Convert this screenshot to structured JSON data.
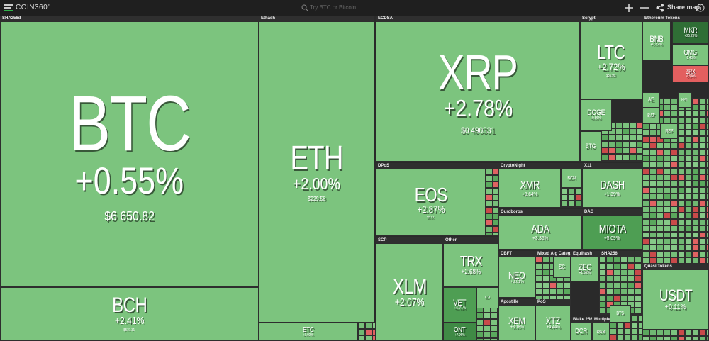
{
  "header": {
    "logo": "COIN360°",
    "search": "Try BTC or Bitcoin",
    "share": "Share map"
  },
  "groups": [
    "SHA256d",
    "Ethash",
    "ECDSA",
    "Scrypt",
    "Ethereum Tokens",
    "DPoS",
    "CryptoNight",
    "X11",
    "Ouroboros",
    "DAG",
    "SCP",
    "Other",
    "DBFT",
    "Mixed Alg Categ...",
    "Equihash",
    "SHA256",
    "Quasi Tokens",
    "Apostille",
    "PoS",
    "Blake 256",
    "Multiple"
  ],
  "tiles": [
    {
      "name": "BTC",
      "change": "+0.55%",
      "price": "$6 650.82"
    },
    {
      "name": "BCH",
      "change": "+2.41%",
      "price": "$527.31"
    },
    {
      "name": "ETH",
      "change": "+2.00%",
      "price": "$229.58"
    },
    {
      "name": "ETC",
      "change": "+0.92%"
    },
    {
      "name": "XRP",
      "change": "+2.78%",
      "price": "$0.490331"
    },
    {
      "name": "LTC",
      "change": "+2.72%",
      "price": "$56.90"
    },
    {
      "name": "DOGE",
      "change": "+0.56%"
    },
    {
      "name": "BTG"
    },
    {
      "name": "EOS",
      "change": "+2.87%",
      "price": "$5.91"
    },
    {
      "name": "XMR",
      "change": "+0.64%"
    },
    {
      "name": "BCN"
    },
    {
      "name": "ETN"
    },
    {
      "name": "DASH",
      "change": "+1.39%"
    },
    {
      "name": "ADA",
      "change": "+3.36%"
    },
    {
      "name": "MIOTA",
      "change": "+5.09%"
    },
    {
      "name": "XLM",
      "change": "+2.07%"
    },
    {
      "name": "TRX",
      "change": "+2.68%"
    },
    {
      "name": "VET",
      "change": "+5.71%"
    },
    {
      "name": "ONT",
      "change": "+7.96%"
    },
    {
      "name": "ICX"
    },
    {
      "name": "NEO",
      "change": "+3.01%"
    },
    {
      "name": "SC"
    },
    {
      "name": "ZEC",
      "change": "+1.52%"
    },
    {
      "name": "XEM",
      "change": "+3.16%"
    },
    {
      "name": "XTZ",
      "change": "+4.44%"
    },
    {
      "name": "DCR"
    },
    {
      "name": "DGB"
    },
    {
      "name": "BTS"
    },
    {
      "name": "USDT",
      "change": "+0.11%"
    },
    {
      "name": "BNB",
      "change": "+0.82%"
    },
    {
      "name": "MKR",
      "change": "+25.29%"
    },
    {
      "name": "OMG",
      "change": "-1.43%"
    },
    {
      "name": "ZRX",
      "change": "-0.94%"
    },
    {
      "name": "AE"
    },
    {
      "name": "BAT"
    },
    {
      "name": "REP"
    },
    {
      "name": "PPT"
    }
  ]
}
